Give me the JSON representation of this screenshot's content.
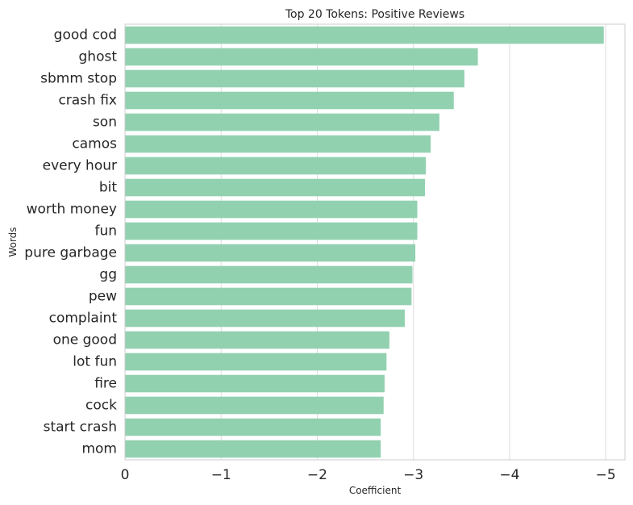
{
  "chart_data": {
    "type": "bar",
    "orientation": "horizontal",
    "title": "Top 20 Tokens: Positive Reviews",
    "xlabel": "Coefficient",
    "ylabel": "Words",
    "xlim": [
      0,
      -5.2
    ],
    "xticks": [
      0,
      -1,
      -2,
      -3,
      -4,
      -5
    ],
    "xtick_labels": [
      "0",
      "−1",
      "−2",
      "−3",
      "−4",
      "−5"
    ],
    "grid": "vertical",
    "bar_color": "#92d1b0",
    "categories": [
      "good cod",
      "ghost",
      "sbmm stop",
      "crash fix",
      "son",
      "camos",
      "every hour",
      "bit",
      "worth money",
      "fun",
      "pure garbage",
      "gg",
      "pew",
      "complaint",
      "one good",
      "lot fun",
      "fire",
      "cock",
      "start crash",
      "mom"
    ],
    "values": [
      -4.98,
      -3.67,
      -3.53,
      -3.42,
      -3.27,
      -3.18,
      -3.13,
      -3.12,
      -3.04,
      -3.04,
      -3.02,
      -2.99,
      -2.98,
      -2.91,
      -2.75,
      -2.72,
      -2.7,
      -2.69,
      -2.66,
      -2.66
    ]
  }
}
